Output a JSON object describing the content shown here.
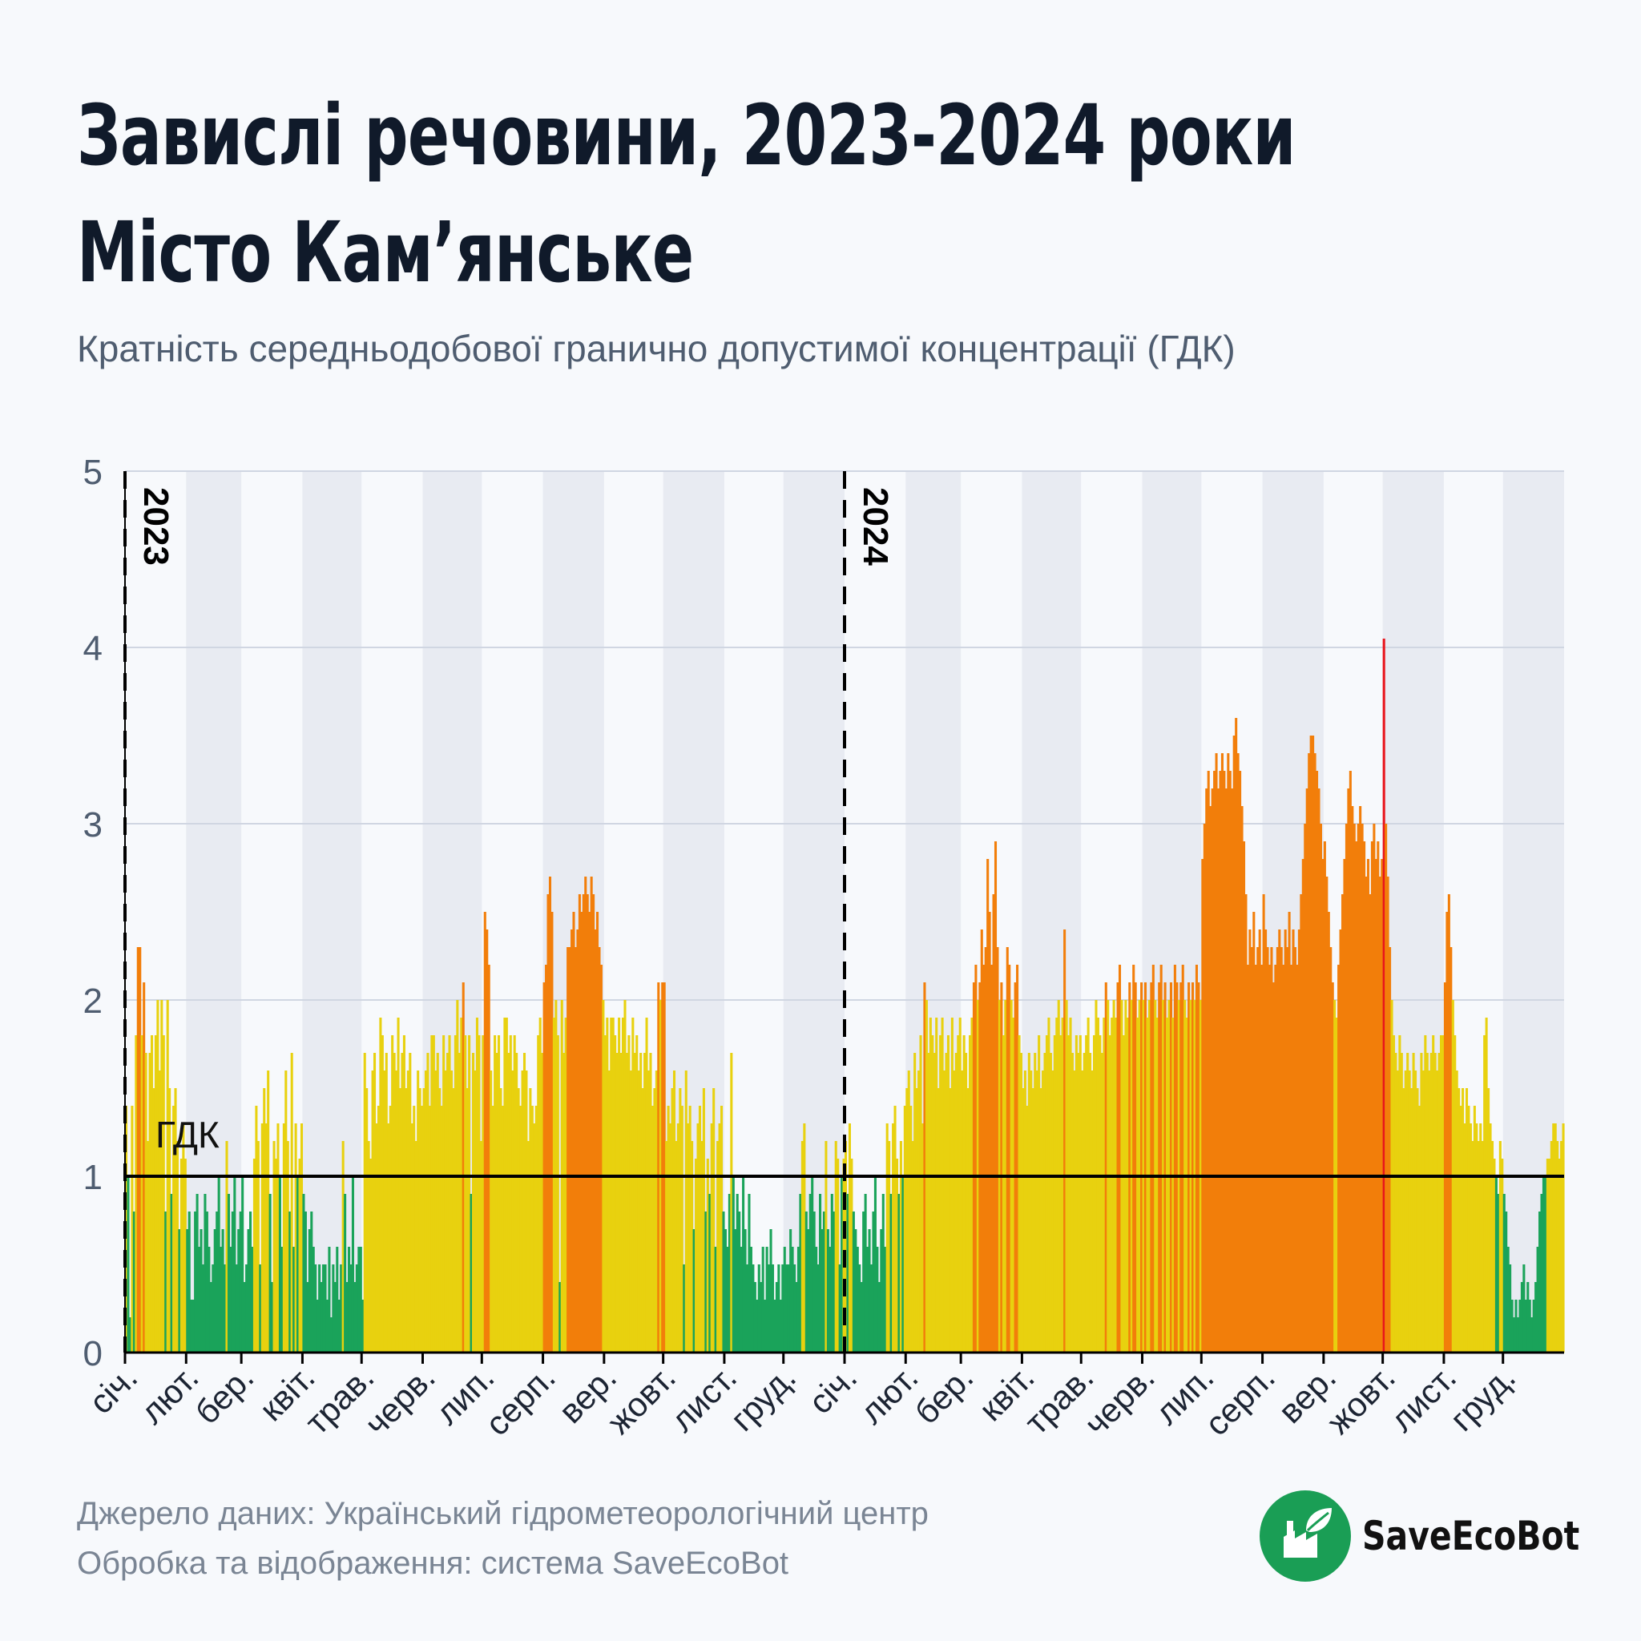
{
  "header": {
    "title_line1": "Завислі речовини, 2023-2024 роки",
    "title_line2": "Місто Кам’янське",
    "subtitle": "Кратність середньодобової гранично допустимої концентрації (ГДК)"
  },
  "footer": {
    "source_line1": "Джерело даних: Український гідрометеорологічний центр",
    "source_line2": "Обробка та відображення: система SaveEcoBot",
    "logo_text": "SaveEcoBot"
  },
  "colors": {
    "below_limit": "#1aa35a",
    "limit_to_2": "#e8d10f",
    "over_2": "#f27e0a",
    "over_4": "#e8141c",
    "month_band": "#e8ebf2",
    "limit_line": "#000000"
  },
  "chart_data": {
    "type": "bar",
    "title": "",
    "xlabel": "",
    "ylabel": "",
    "ylim": [
      0,
      5
    ],
    "yticks": [
      "0",
      "1",
      "2",
      "3",
      "4",
      "5"
    ],
    "grid": true,
    "reference_line": {
      "value": 1,
      "label": "ГДК"
    },
    "year_markers": [
      {
        "label": "2023",
        "month_index": 0
      },
      {
        "label": "2024",
        "month_index": 12
      }
    ],
    "month_labels": [
      "січ.",
      "лют.",
      "бер.",
      "квіт.",
      "трав.",
      "черв.",
      "лип.",
      "серп.",
      "вер.",
      "жовт.",
      "лист.",
      "груд.",
      "січ.",
      "лют.",
      "бер.",
      "квіт.",
      "трав.",
      "черв.",
      "лип.",
      "серп.",
      "вер.",
      "жовт.",
      "лист.",
      "груд."
    ],
    "series": [
      {
        "months": [
          [
            1.4,
            1.0,
            0.2,
            1.4,
            0.8,
            1.8,
            2.3,
            2.3,
            1.8,
            2.1,
            1.7,
            1.2,
            1.7,
            1.8,
            1.5,
            1.8,
            2.0,
            1.6,
            2.0,
            1.8,
            0.8,
            2.0,
            1.5,
            0.9,
            1.4,
            1.5,
            1.2,
            0.7,
            1.1,
            1.3,
            1.1
          ],
          [
            0.7,
            0.8,
            0.3,
            0.3,
            0.8,
            0.9,
            0.6,
            0.7,
            0.5,
            0.9,
            0.8,
            0.6,
            0.4,
            0.5,
            0.7,
            0.8,
            1.0,
            0.6,
            0.7,
            0.5,
            1.2,
            0.9,
            0.6,
            0.8,
            1.0,
            0.5,
            0.7,
            0.8
          ],
          [
            1.0,
            0.4,
            0.5,
            0.7,
            0.8,
            0.6,
            1.1,
            1.4,
            1.2,
            0.5,
            1.3,
            1.5,
            1.3,
            1.6,
            0.9,
            0.4,
            1.2,
            1.1,
            1.3,
            1.0,
            0.6,
            1.3,
            1.6,
            1.2,
            0.8,
            1.7,
            0.6,
            1.3,
            1.0,
            1.1,
            1.3
          ],
          [
            0.9,
            0.8,
            0.4,
            0.7,
            0.8,
            0.6,
            0.5,
            0.3,
            0.5,
            0.4,
            0.5,
            0.5,
            0.3,
            0.6,
            0.2,
            0.5,
            0.4,
            0.6,
            0.3,
            0.5,
            1.2,
            0.9,
            0.4,
            0.6,
            0.5,
            1.0,
            0.4,
            0.5,
            0.6,
            0.6
          ],
          [
            0.3,
            1.7,
            1.5,
            1.2,
            1.1,
            1.6,
            1.7,
            1.3,
            1.4,
            1.9,
            1.8,
            1.6,
            1.7,
            1.3,
            1.4,
            1.8,
            1.7,
            1.6,
            1.9,
            1.5,
            1.7,
            1.8,
            1.5,
            1.6,
            1.7,
            1.3,
            1.4,
            1.2,
            1.6,
            1.5,
            1.4
          ],
          [
            1.5,
            1.6,
            1.7,
            1.4,
            1.8,
            1.8,
            1.6,
            1.7,
            1.5,
            1.4,
            1.8,
            1.6,
            1.7,
            1.8,
            1.6,
            1.5,
            1.8,
            2.0,
            1.7,
            1.9,
            2.1,
            1.8,
            1.5,
            1.8,
            0.9,
            1.7,
            1.6,
            1.9,
            1.8,
            1.2
          ],
          [
            1.8,
            2.5,
            2.4,
            2.2,
            1.6,
            1.4,
            1.8,
            1.7,
            1.8,
            1.5,
            1.4,
            1.9,
            1.9,
            1.7,
            1.8,
            1.6,
            1.8,
            1.7,
            1.5,
            1.4,
            1.6,
            1.7,
            1.6,
            1.2,
            1.5,
            1.4,
            1.3,
            1.4,
            1.8,
            1.9,
            1.7
          ],
          [
            2.1,
            2.2,
            2.6,
            2.7,
            2.5,
            1.9,
            2.0,
            1.8,
            0.4,
            2.0,
            1.7,
            1.9,
            2.3,
            2.3,
            2.4,
            2.5,
            2.3,
            2.4,
            2.6,
            2.5,
            2.6,
            2.7,
            2.6,
            2.5,
            2.7,
            2.6,
            2.4,
            2.5,
            2.3,
            2.2,
            2.0
          ],
          [
            1.8,
            1.9,
            1.6,
            1.9,
            1.9,
            1.8,
            1.7,
            1.9,
            1.7,
            1.9,
            2.0,
            1.7,
            1.8,
            1.6,
            1.9,
            1.7,
            1.8,
            1.6,
            1.7,
            1.5,
            1.7,
            1.9,
            1.6,
            1.7,
            1.4,
            1.5,
            1.6,
            2.1,
            2.0,
            2.1
          ],
          [
            2.1,
            1.2,
            1.4,
            1.3,
            1.5,
            1.6,
            1.2,
            1.3,
            1.5,
            1.4,
            0.5,
            1.6,
            1.3,
            1.4,
            1.2,
            0.7,
            1.1,
            1.3,
            1.4,
            1.2,
            1.5,
            0.8,
            1.1,
            0.9,
            1.3,
            1.5,
            0.6,
            1.2,
            1.3,
            1.4,
            0.8
          ],
          [
            0.7,
            0.6,
            0.9,
            1.7,
            1.0,
            0.7,
            0.9,
            0.8,
            0.6,
            1.0,
            0.7,
            0.5,
            0.9,
            0.6,
            0.5,
            0.4,
            0.3,
            0.5,
            0.4,
            0.6,
            0.3,
            0.6,
            0.5,
            0.7,
            0.5,
            0.3,
            0.4,
            0.5,
            0.3,
            0.5
          ],
          [
            0.6,
            0.5,
            0.5,
            0.7,
            0.6,
            0.5,
            0.4,
            0.6,
            0.9,
            1.2,
            1.3,
            0.8,
            0.7,
            0.9,
            1.0,
            0.8,
            0.6,
            0.5,
            0.9,
            0.7,
            0.8,
            1.2,
            0.7,
            0.6,
            0.9,
            0.8,
            1.2,
            1.1,
            0.5,
            1.0,
            1.1
          ]
        ]
      },
      {
        "months": [
          [
            1.2,
            0.9,
            1.3,
            1.1,
            0.8,
            0.7,
            0.6,
            0.5,
            0.4,
            0.8,
            0.9,
            0.6,
            0.7,
            0.5,
            0.8,
            1.0,
            0.6,
            0.4,
            0.7,
            0.9,
            0.6,
            1.3,
            1.2,
            0.9,
            1.3,
            1.4,
            1.1,
            0.9,
            1.2,
            1.0,
            1.4
          ],
          [
            1.5,
            1.6,
            1.4,
            1.2,
            1.7,
            1.5,
            1.6,
            1.8,
            1.3,
            2.1,
            2.0,
            1.7,
            1.9,
            1.8,
            1.7,
            1.9,
            1.5,
            1.8,
            1.9,
            1.6,
            1.7,
            1.8,
            1.5,
            1.9,
            1.6,
            1.7,
            1.8,
            1.9
          ],
          [
            1.6,
            1.8,
            1.7,
            1.5,
            1.8,
            1.9,
            2.1,
            2.2,
            2.0,
            2.1,
            2.4,
            2.2,
            2.3,
            2.8,
            2.5,
            2.2,
            2.6,
            2.9,
            2.3,
            2.0,
            2.1,
            1.8,
            2.0,
            2.3,
            2.2,
            2.0,
            1.9,
            2.1,
            2.2,
            1.8,
            1.7
          ],
          [
            1.5,
            1.6,
            1.4,
            1.7,
            1.6,
            1.5,
            1.7,
            1.6,
            1.8,
            1.5,
            1.6,
            1.7,
            1.8,
            1.9,
            1.7,
            1.6,
            1.8,
            1.9,
            2.0,
            1.8,
            1.9,
            2.4,
            2.0,
            1.8,
            1.9,
            1.7,
            1.6,
            1.8,
            1.7,
            1.8
          ],
          [
            1.6,
            1.7,
            1.8,
            1.9,
            1.7,
            1.6,
            1.8,
            2.0,
            1.9,
            1.8,
            1.7,
            1.9,
            2.1,
            2.0,
            1.8,
            1.9,
            2.0,
            1.9,
            2.1,
            2.2,
            2.0,
            1.8,
            2.0,
            1.9,
            2.1,
            2.0,
            2.2,
            2.1,
            1.9,
            2.0,
            2.1
          ],
          [
            2.0,
            2.1,
            1.9,
            2.0,
            2.1,
            2.2,
            2.0,
            1.9,
            2.1,
            2.2,
            2.0,
            2.1,
            1.9,
            2.0,
            2.1,
            1.9,
            2.2,
            2.1,
            2.0,
            2.1,
            2.2,
            2.0,
            1.9,
            2.1,
            2.0,
            2.1,
            2.0,
            2.2,
            2.1,
            2.0
          ],
          [
            2.8,
            3.0,
            3.2,
            3.3,
            3.1,
            3.2,
            3.3,
            3.4,
            3.2,
            3.3,
            3.4,
            3.3,
            3.2,
            3.4,
            3.3,
            3.2,
            3.5,
            3.6,
            3.4,
            3.3,
            3.1,
            2.9,
            2.6,
            2.2,
            2.4,
            2.3,
            2.5,
            2.2,
            2.3,
            2.4,
            2.2
          ],
          [
            2.6,
            2.4,
            2.3,
            2.2,
            2.3,
            2.1,
            2.2,
            2.3,
            2.4,
            2.3,
            2.2,
            2.4,
            2.3,
            2.5,
            2.2,
            2.4,
            2.3,
            2.2,
            2.4,
            2.6,
            2.8,
            3.0,
            3.2,
            3.4,
            3.5,
            3.5,
            3.4,
            3.3,
            3.2,
            3.0,
            2.8
          ],
          [
            2.9,
            2.7,
            2.5,
            2.3,
            2.1,
            2.0,
            1.9,
            2.2,
            2.4,
            2.6,
            2.8,
            3.0,
            3.2,
            3.3,
            3.1,
            3.0,
            2.9,
            3.0,
            3.1,
            3.0,
            2.9,
            2.7,
            2.8,
            2.6,
            2.9,
            3.0,
            2.8,
            2.9,
            2.7,
            2.8
          ],
          [
            4.05,
            3.0,
            2.7,
            2.3,
            2.0,
            1.8,
            1.7,
            1.6,
            1.8,
            1.7,
            1.5,
            1.6,
            1.7,
            1.6,
            1.5,
            1.7,
            1.6,
            1.5,
            1.4,
            1.7,
            1.6,
            1.8,
            1.7,
            1.6,
            1.7,
            1.8,
            1.7,
            1.6,
            1.7,
            1.8,
            1.8
          ],
          [
            2.1,
            2.5,
            2.6,
            2.3,
            2.0,
            1.8,
            1.6,
            1.5,
            1.4,
            1.5,
            1.3,
            1.5,
            1.4,
            1.3,
            1.2,
            1.4,
            1.3,
            1.2,
            1.3,
            1.2,
            1.8,
            1.9,
            1.5,
            1.3,
            1.2,
            1.1,
            1.0,
            0.9,
            1.2,
            1.1
          ],
          [
            0.9,
            0.8,
            0.6,
            0.5,
            0.3,
            0.2,
            0.3,
            0.2,
            0.3,
            0.4,
            0.5,
            0.3,
            0.4,
            0.3,
            0.2,
            0.3,
            0.4,
            0.6,
            0.8,
            0.9,
            1.0,
            1.0,
            1.1,
            1.1,
            1.2,
            1.3,
            1.3,
            1.2,
            1.1,
            1.2,
            1.3
          ]
        ]
      }
    ]
  }
}
